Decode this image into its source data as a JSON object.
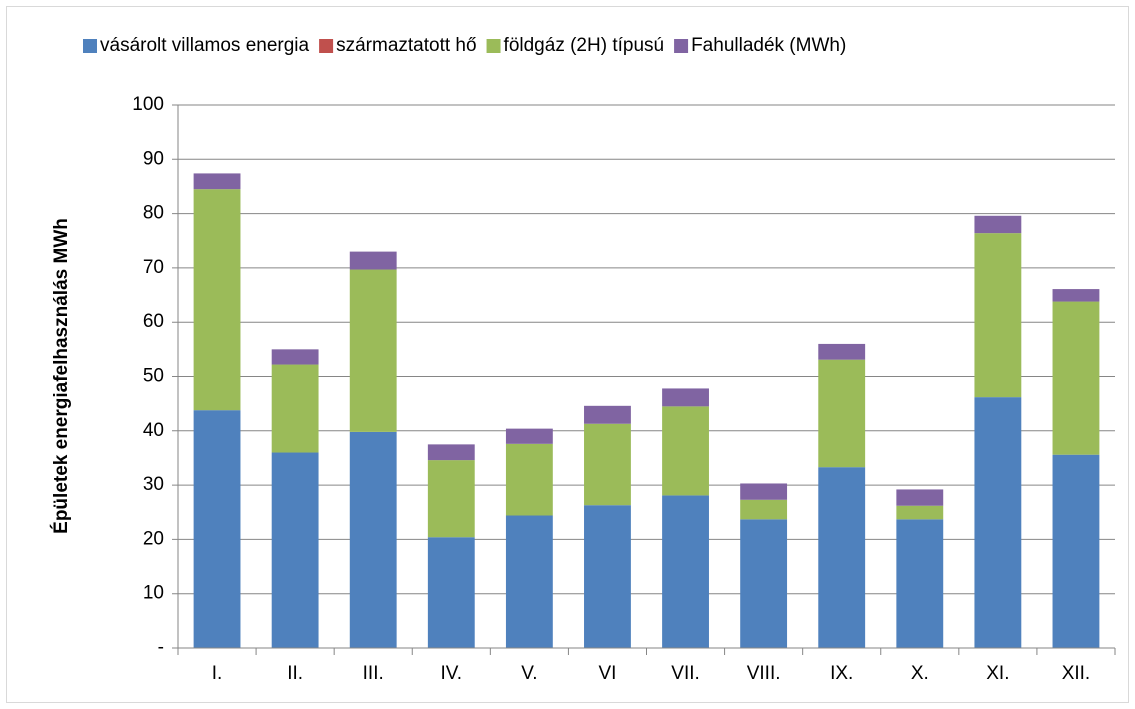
{
  "chart_data": {
    "type": "stacked_bar",
    "y_label": "Épületek energiafelhasználás MWh",
    "categories": [
      "I.",
      "II.",
      "III.",
      "IV.",
      "V.",
      "VI",
      "VII.",
      "VIII.",
      "IX.",
      "X.",
      "XI.",
      "XII."
    ],
    "series": [
      {
        "name": "vásárolt villamos energia",
        "color": "#4f81bd",
        "values": [
          43.8,
          36.0,
          39.8,
          20.4,
          24.4,
          26.3,
          28.1,
          23.7,
          33.3,
          23.7,
          46.2,
          35.6
        ]
      },
      {
        "name": "származtatott hő",
        "color": "#c0504d",
        "values": [
          0,
          0,
          0,
          0,
          0,
          0,
          0,
          0,
          0,
          0,
          0,
          0
        ]
      },
      {
        "name": "földgáz (2H) típusú",
        "color": "#9bbb59",
        "values": [
          40.7,
          16.2,
          29.9,
          14.2,
          13.2,
          15.0,
          16.4,
          3.6,
          19.8,
          2.5,
          30.2,
          28.2
        ]
      },
      {
        "name": "Fahulladék (MWh)",
        "color": "#8064a2",
        "values": [
          2.9,
          2.8,
          3.3,
          2.9,
          2.8,
          3.3,
          3.3,
          3.0,
          2.9,
          3.0,
          3.2,
          2.3
        ]
      }
    ],
    "ylim": [
      0,
      100
    ],
    "yticks": [
      {
        "value": 0,
        "label": "-"
      },
      10,
      20,
      30,
      40,
      50,
      60,
      70,
      80,
      90,
      100
    ],
    "grid": true,
    "legend": "top"
  }
}
